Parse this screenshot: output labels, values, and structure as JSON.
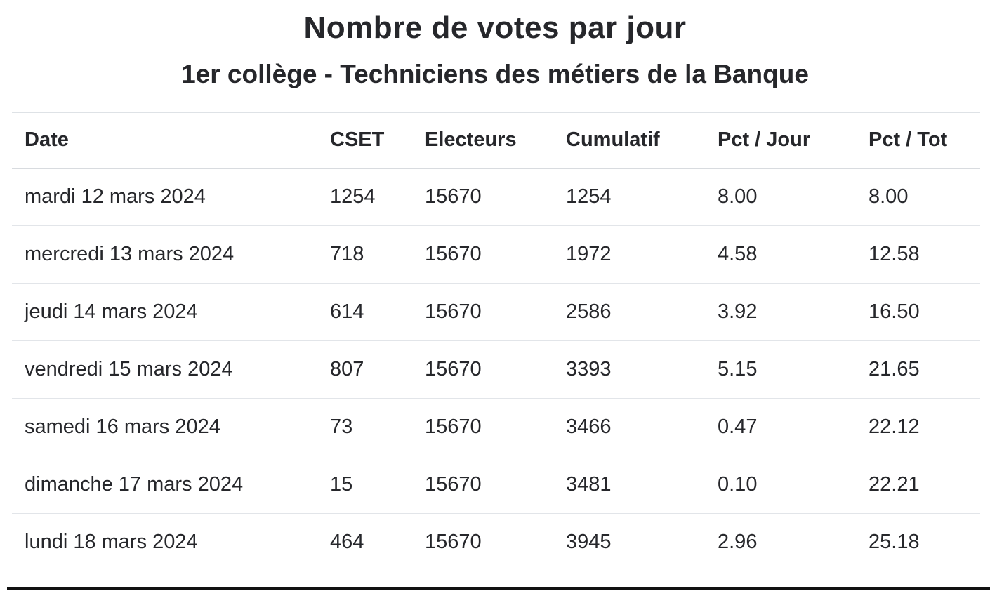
{
  "header": {
    "title": "Nombre de votes par jour",
    "subtitle": "1er collège - Techniciens des métiers de la Banque"
  },
  "table": {
    "columns": [
      "Date",
      "CSET",
      "Electeurs",
      "Cumulatif",
      "Pct / Jour",
      "Pct / Tot"
    ],
    "rows": [
      {
        "date": "mardi 12 mars 2024",
        "cset": "1254",
        "electeurs": "15670",
        "cumulatif": "1254",
        "pct_jour": "8.00",
        "pct_tot": "8.00"
      },
      {
        "date": "mercredi 13 mars 2024",
        "cset": "718",
        "electeurs": "15670",
        "cumulatif": "1972",
        "pct_jour": "4.58",
        "pct_tot": "12.58"
      },
      {
        "date": "jeudi 14 mars 2024",
        "cset": "614",
        "electeurs": "15670",
        "cumulatif": "2586",
        "pct_jour": "3.92",
        "pct_tot": "16.50"
      },
      {
        "date": "vendredi 15 mars 2024",
        "cset": "807",
        "electeurs": "15670",
        "cumulatif": "3393",
        "pct_jour": "5.15",
        "pct_tot": "21.65"
      },
      {
        "date": "samedi 16 mars 2024",
        "cset": "73",
        "electeurs": "15670",
        "cumulatif": "3466",
        "pct_jour": "0.47",
        "pct_tot": "22.12"
      },
      {
        "date": "dimanche 17 mars 2024",
        "cset": "15",
        "electeurs": "15670",
        "cumulatif": "3481",
        "pct_jour": "0.10",
        "pct_tot": "22.21"
      },
      {
        "date": "lundi 18 mars 2024",
        "cset": "464",
        "electeurs": "15670",
        "cumulatif": "3945",
        "pct_jour": "2.96",
        "pct_tot": "25.18"
      }
    ]
  },
  "colors": {
    "text": "#26272b",
    "row_border": "#e2e5e9",
    "header_border": "#d8dbdf",
    "bottom_bar": "#111111"
  }
}
